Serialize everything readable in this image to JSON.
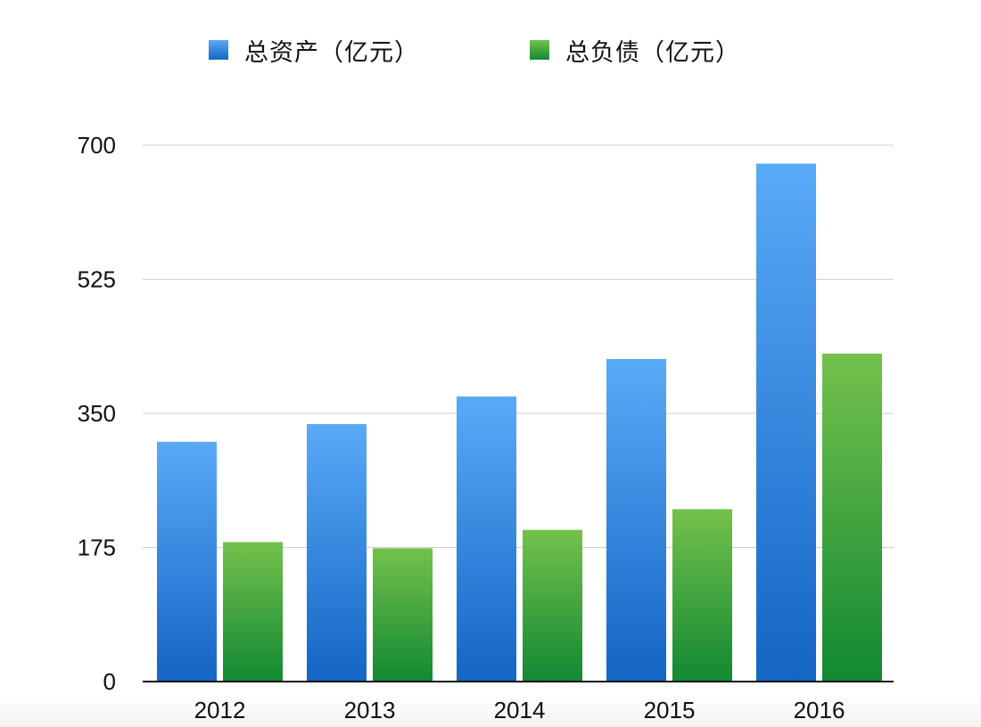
{
  "chart_data": {
    "type": "bar",
    "title": "",
    "xlabel": "",
    "ylabel": "",
    "categories": [
      "2012",
      "2013",
      "2014",
      "2015",
      "2016"
    ],
    "series": [
      {
        "name": "总资产（亿元）",
        "values": [
          313,
          336,
          372,
          421,
          676
        ],
        "color": "#2f86df"
      },
      {
        "name": "总负债（亿元）",
        "values": [
          182,
          174,
          198,
          225,
          428
        ],
        "color": "#3ca63c"
      }
    ],
    "ylim": [
      0,
      700
    ],
    "yticks": [
      "0",
      "175",
      "350",
      "525",
      "700"
    ],
    "grid": true,
    "legend_position": "top"
  }
}
